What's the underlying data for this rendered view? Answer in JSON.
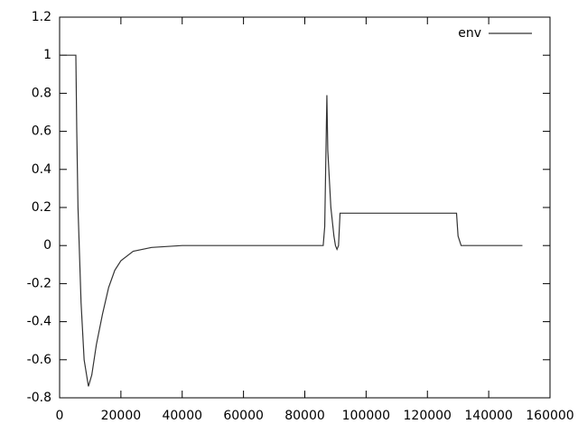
{
  "chart_data": {
    "type": "line",
    "x": [
      0,
      5300,
      5600,
      6000,
      7000,
      8000,
      9400,
      10500,
      12000,
      14000,
      16000,
      18000,
      20000,
      24000,
      30000,
      40000,
      60000,
      80000,
      86000,
      86500,
      87200,
      87500,
      88500,
      89500,
      90000,
      90500,
      91000,
      91500,
      100000,
      129500,
      130000,
      131000,
      140000,
      151000
    ],
    "series": [
      {
        "name": "env",
        "color": "#333333",
        "values": [
          1,
          1,
          0.6,
          0.2,
          -0.3,
          -0.6,
          -0.74,
          -0.68,
          -0.52,
          -0.36,
          -0.22,
          -0.13,
          -0.08,
          -0.03,
          -0.01,
          0,
          0,
          0,
          0,
          0.1,
          0.79,
          0.5,
          0.2,
          0.05,
          0,
          -0.02,
          0,
          0.17,
          0.17,
          0.17,
          0.05,
          0,
          0,
          0
        ]
      }
    ],
    "xlim": [
      0,
      160000
    ],
    "xticks": [
      0,
      20000,
      40000,
      60000,
      80000,
      100000,
      120000,
      140000,
      160000
    ],
    "ylim": [
      -0.8,
      1.2
    ],
    "yticks": [
      -0.8,
      -0.6,
      -0.4,
      -0.2,
      0,
      0.2,
      0.4,
      0.6,
      0.8,
      1,
      1.2
    ],
    "grid": false,
    "legend": "top-right"
  }
}
